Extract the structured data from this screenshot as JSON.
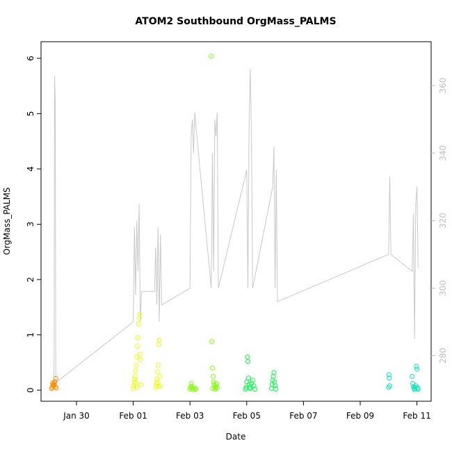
{
  "chart_data": {
    "type": "scatter",
    "title": "ATOM2 Southbound OrgMass_PALMS",
    "xlabel": "Date",
    "ylabel": "OrgMass_PALMS",
    "xlim": [
      "2017-01-28T18:00",
      "2017-02-11T12:00"
    ],
    "ylim": [
      -0.2,
      6.3
    ],
    "y_ticks": [
      0,
      1,
      2,
      3,
      4,
      5,
      6
    ],
    "x_ticks": [
      {
        "date": "2017-01-30T00:00",
        "label": "Jan 30"
      },
      {
        "date": "2017-02-01T00:00",
        "label": "Feb 01"
      },
      {
        "date": "2017-02-03T00:00",
        "label": "Feb 03"
      },
      {
        "date": "2017-02-05T00:00",
        "label": "Feb 05"
      },
      {
        "date": "2017-02-07T00:00",
        "label": "Feb 07"
      },
      {
        "date": "2017-02-09T00:00",
        "label": "Feb 09"
      },
      {
        "date": "2017-02-11T00:00",
        "label": "Feb 11"
      }
    ],
    "y2_ticks": [
      280,
      300,
      320,
      340,
      360
    ],
    "y2lim": [
      266.5,
      373.0
    ],
    "y2_color": "#bebebe",
    "grid": false,
    "legend": "none",
    "series": [
      {
        "color": "#ff8c00",
        "points": [
          [
            "2017-01-29T03:00",
            0.03
          ],
          [
            "2017-01-29T03:30",
            0.05
          ],
          [
            "2017-01-29T04:00",
            0.08
          ],
          [
            "2017-01-29T04:30",
            0.1
          ],
          [
            "2017-01-29T05:00",
            0.12
          ],
          [
            "2017-01-29T05:30",
            0.15
          ],
          [
            "2017-01-29T06:00",
            0.06
          ],
          [
            "2017-01-29T06:30",
            0.21
          ],
          [
            "2017-01-29T07:00",
            0.04
          ],
          [
            "2017-01-29T03:45",
            0.13
          ],
          [
            "2017-01-29T05:15",
            0.09
          ]
        ]
      },
      {
        "color": "#e8ff00",
        "points": [
          [
            "2017-02-01T00:00",
            0.03
          ],
          [
            "2017-02-01T00:30",
            0.08
          ],
          [
            "2017-02-01T01:00",
            0.15
          ],
          [
            "2017-02-01T01:30",
            0.25
          ],
          [
            "2017-02-01T02:00",
            0.35
          ],
          [
            "2017-02-01T02:30",
            0.45
          ],
          [
            "2017-02-01T03:00",
            0.6
          ],
          [
            "2017-02-01T03:30",
            0.8
          ],
          [
            "2017-02-01T04:00",
            0.95
          ],
          [
            "2017-02-01T04:30",
            1.2
          ],
          [
            "2017-02-01T05:00",
            1.3
          ],
          [
            "2017-02-01T05:30",
            1.37
          ],
          [
            "2017-02-01T06:00",
            0.55
          ],
          [
            "2017-02-01T06:30",
            0.1
          ],
          [
            "2017-02-01T03:15",
            0.05
          ],
          [
            "2017-02-01T02:15",
            0.12
          ],
          [
            "2017-02-01T01:15",
            0.2
          ],
          [
            "2017-02-01T05:45",
            0.65
          ],
          [
            "2017-02-01T19:00",
            0.05
          ],
          [
            "2017-02-01T19:30",
            0.12
          ],
          [
            "2017-02-01T20:00",
            0.2
          ],
          [
            "2017-02-01T20:30",
            0.33
          ],
          [
            "2017-02-01T21:00",
            0.45
          ],
          [
            "2017-02-01T21:30",
            0.83
          ],
          [
            "2017-02-01T22:00",
            0.9
          ],
          [
            "2017-02-01T22:30",
            0.25
          ],
          [
            "2017-02-01T23:00",
            0.08
          ],
          [
            "2017-02-01T20:15",
            0.15
          ],
          [
            "2017-02-01T21:15",
            0.07
          ]
        ]
      },
      {
        "color": "#7cff00",
        "points": [
          [
            "2017-02-03T00:00",
            0.02
          ],
          [
            "2017-02-03T00:30",
            0.05
          ],
          [
            "2017-02-03T01:00",
            0.12
          ],
          [
            "2017-02-03T01:30",
            0.07
          ],
          [
            "2017-02-03T02:00",
            0.03
          ],
          [
            "2017-02-03T03:00",
            0.01
          ],
          [
            "2017-02-03T04:00",
            0.04
          ],
          [
            "2017-02-03T05:00",
            0.02
          ],
          [
            "2017-02-03T18:00",
            6.04
          ],
          [
            "2017-02-03T18:30",
            0.88
          ],
          [
            "2017-02-03T19:00",
            0.4
          ],
          [
            "2017-02-03T19:30",
            0.25
          ],
          [
            "2017-02-03T20:00",
            0.15
          ],
          [
            "2017-02-03T20:30",
            0.1
          ],
          [
            "2017-02-03T21:00",
            0.05
          ],
          [
            "2017-02-03T21:30",
            0.02
          ],
          [
            "2017-02-03T22:00",
            0.08
          ],
          [
            "2017-02-03T22:30",
            0.12
          ],
          [
            "2017-02-03T23:00",
            0.04
          ],
          [
            "2017-02-03T19:15",
            0.03
          ]
        ]
      },
      {
        "color": "#00ff40",
        "points": [
          [
            "2017-02-04T23:00",
            0.02
          ],
          [
            "2017-02-04T23:30",
            0.05
          ],
          [
            "2017-02-05T00:00",
            0.15
          ],
          [
            "2017-02-05T00:30",
            0.6
          ],
          [
            "2017-02-05T01:00",
            0.52
          ],
          [
            "2017-02-05T01:30",
            0.22
          ],
          [
            "2017-02-05T02:00",
            0.1
          ],
          [
            "2017-02-05T02:30",
            0.05
          ],
          [
            "2017-02-05T03:00",
            0.03
          ],
          [
            "2017-02-05T04:00",
            0.12
          ],
          [
            "2017-02-05T05:00",
            0.18
          ],
          [
            "2017-02-05T06:00",
            0.08
          ],
          [
            "2017-02-05T07:00",
            0.02
          ],
          [
            "2017-02-05T21:00",
            0.03
          ],
          [
            "2017-02-05T21:30",
            0.1
          ],
          [
            "2017-02-05T22:00",
            0.18
          ],
          [
            "2017-02-05T22:30",
            0.25
          ],
          [
            "2017-02-05T23:00",
            0.32
          ],
          [
            "2017-02-05T23:30",
            0.15
          ],
          [
            "2017-02-06T00:00",
            0.08
          ],
          [
            "2017-02-06T00:30",
            0.02
          ]
        ]
      },
      {
        "color": "#00e6b4",
        "points": [
          [
            "2017-02-10T00:00",
            0.05
          ],
          [
            "2017-02-10T00:20",
            0.28
          ],
          [
            "2017-02-10T00:40",
            0.22
          ],
          [
            "2017-02-10T01:00",
            0.08
          ],
          [
            "2017-02-10T20:00",
            0.25
          ],
          [
            "2017-02-10T20:30",
            0.12
          ],
          [
            "2017-02-10T21:00",
            0.06
          ],
          [
            "2017-02-10T21:30",
            0.03
          ],
          [
            "2017-02-10T22:00",
            0.01
          ],
          [
            "2017-02-10T22:30",
            0.05
          ],
          [
            "2017-02-10T23:00",
            0.08
          ],
          [
            "2017-02-10T23:30",
            0.43
          ],
          [
            "2017-02-11T00:00",
            0.38
          ],
          [
            "2017-02-11T00:30",
            0.04
          ],
          [
            "2017-02-11T01:00",
            0.02
          ]
        ]
      }
    ],
    "altitude_line": {
      "color": "#c8c8c8",
      "points": [
        [
          "2017-01-29T04:00",
          270
        ],
        [
          "2017-01-29T05:00",
          272
        ],
        [
          "2017-01-29T05:30",
          363
        ],
        [
          "2017-01-29T06:00",
          355
        ],
        [
          "2017-01-29T06:30",
          272
        ],
        [
          "2017-02-01T00:00",
          290
        ],
        [
          "2017-02-01T01:00",
          318
        ],
        [
          "2017-02-01T02:00",
          298
        ],
        [
          "2017-02-01T03:00",
          320
        ],
        [
          "2017-02-01T04:00",
          305
        ],
        [
          "2017-02-01T05:00",
          325
        ],
        [
          "2017-02-01T06:00",
          290
        ],
        [
          "2017-02-01T07:00",
          299
        ],
        [
          "2017-02-01T18:00",
          299
        ],
        [
          "2017-02-01T19:00",
          312
        ],
        [
          "2017-02-01T20:00",
          295
        ],
        [
          "2017-02-01T21:00",
          318
        ],
        [
          "2017-02-01T22:00",
          290
        ],
        [
          "2017-02-01T23:00",
          316
        ],
        [
          "2017-02-02T00:00",
          295
        ],
        [
          "2017-02-03T00:00",
          300
        ],
        [
          "2017-02-03T01:00",
          345
        ],
        [
          "2017-02-03T02:00",
          350
        ],
        [
          "2017-02-03T03:00",
          340
        ],
        [
          "2017-02-03T04:00",
          352
        ],
        [
          "2017-02-03T05:00",
          348
        ],
        [
          "2017-02-03T18:00",
          300
        ],
        [
          "2017-02-03T19:00",
          340
        ],
        [
          "2017-02-03T20:00",
          305
        ],
        [
          "2017-02-03T21:00",
          350
        ],
        [
          "2017-02-03T22:00",
          345
        ],
        [
          "2017-02-03T23:00",
          352
        ],
        [
          "2017-02-04T00:00",
          300
        ],
        [
          "2017-02-05T00:00",
          335
        ],
        [
          "2017-02-05T01:00",
          300
        ],
        [
          "2017-02-05T02:00",
          348
        ],
        [
          "2017-02-05T03:00",
          365
        ],
        [
          "2017-02-05T04:00",
          345
        ],
        [
          "2017-02-05T05:00",
          300
        ],
        [
          "2017-02-05T22:00",
          330
        ],
        [
          "2017-02-05T23:00",
          342
        ],
        [
          "2017-02-06T00:00",
          300
        ],
        [
          "2017-02-06T01:00",
          335
        ],
        [
          "2017-02-06T02:00",
          296
        ],
        [
          "2017-02-10T00:00",
          310
        ],
        [
          "2017-02-10T01:00",
          333
        ],
        [
          "2017-02-10T02:00",
          310
        ],
        [
          "2017-02-10T20:00",
          305
        ],
        [
          "2017-02-10T21:00",
          322
        ],
        [
          "2017-02-10T22:00",
          285
        ],
        [
          "2017-02-10T23:00",
          325
        ],
        [
          "2017-02-11T00:00",
          330
        ],
        [
          "2017-02-11T01:00",
          306
        ]
      ]
    }
  }
}
